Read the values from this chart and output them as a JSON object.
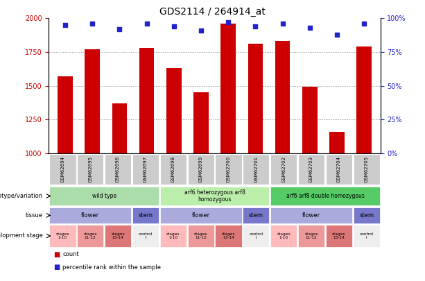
{
  "title": "GDS2114 / 264914_at",
  "samples": [
    "GSM62694",
    "GSM62695",
    "GSM62696",
    "GSM62697",
    "GSM62698",
    "GSM62699",
    "GSM62700",
    "GSM62701",
    "GSM62702",
    "GSM62703",
    "GSM62704",
    "GSM62705"
  ],
  "counts": [
    1570,
    1770,
    1370,
    1780,
    1630,
    1450,
    1960,
    1810,
    1830,
    1490,
    1160,
    1790
  ],
  "percentiles": [
    95,
    96,
    92,
    96,
    94,
    91,
    97,
    94,
    96,
    93,
    88,
    96
  ],
  "ylim_left": [
    1000,
    2000
  ],
  "ylim_right": [
    0,
    100
  ],
  "yticks_left": [
    1000,
    1250,
    1500,
    1750,
    2000
  ],
  "yticks_right": [
    0,
    25,
    50,
    75,
    100
  ],
  "bar_color": "#cc0000",
  "dot_color": "#2222cc",
  "grid_color": "#888888",
  "sample_bg": "#cccccc",
  "genotype_rows": [
    {
      "label": "wild type",
      "start": 0,
      "end": 4,
      "color": "#aaddaa"
    },
    {
      "label": "arf6 heterozygous arf8\nhomozygous",
      "start": 4,
      "end": 8,
      "color": "#bbeeaa"
    },
    {
      "label": "arf6 arf8 double homozygous",
      "start": 8,
      "end": 12,
      "color": "#55cc66"
    }
  ],
  "tissue_rows": [
    {
      "label": "flower",
      "start": 0,
      "end": 3,
      "color": "#aaaadd"
    },
    {
      "label": "stem",
      "start": 3,
      "end": 4,
      "color": "#7777cc"
    },
    {
      "label": "flower",
      "start": 4,
      "end": 7,
      "color": "#aaaadd"
    },
    {
      "label": "stem",
      "start": 7,
      "end": 8,
      "color": "#7777cc"
    },
    {
      "label": "flower",
      "start": 8,
      "end": 11,
      "color": "#aaaadd"
    },
    {
      "label": "stem",
      "start": 11,
      "end": 12,
      "color": "#7777cc"
    }
  ],
  "dev_stage_rows": [
    {
      "label": "stages\n1-10",
      "start": 0,
      "end": 1,
      "color": "#ffbbbb"
    },
    {
      "label": "stages\n11-12",
      "start": 1,
      "end": 2,
      "color": "#ee9999"
    },
    {
      "label": "stages\n13-14",
      "start": 2,
      "end": 3,
      "color": "#dd7777"
    },
    {
      "label": "control\nl",
      "start": 3,
      "end": 4,
      "color": "#eeeeee"
    },
    {
      "label": "stages\n1-10",
      "start": 4,
      "end": 5,
      "color": "#ffbbbb"
    },
    {
      "label": "stages\n11-12",
      "start": 5,
      "end": 6,
      "color": "#ee9999"
    },
    {
      "label": "stages\n13-14",
      "start": 6,
      "end": 7,
      "color": "#dd7777"
    },
    {
      "label": "control\nl",
      "start": 7,
      "end": 8,
      "color": "#eeeeee"
    },
    {
      "label": "stages\n1-10",
      "start": 8,
      "end": 9,
      "color": "#ffbbbb"
    },
    {
      "label": "stages\n11-12",
      "start": 9,
      "end": 10,
      "color": "#ee9999"
    },
    {
      "label": "stages\n13-14",
      "start": 10,
      "end": 11,
      "color": "#dd7777"
    },
    {
      "label": "control\nl",
      "start": 11,
      "end": 12,
      "color": "#eeeeee"
    }
  ],
  "row_labels": [
    "genotype/variation",
    "tissue",
    "development stage"
  ],
  "legend_items": [
    {
      "color": "#cc0000",
      "label": "count"
    },
    {
      "color": "#2222cc",
      "label": "percentile rank within the sample"
    }
  ]
}
